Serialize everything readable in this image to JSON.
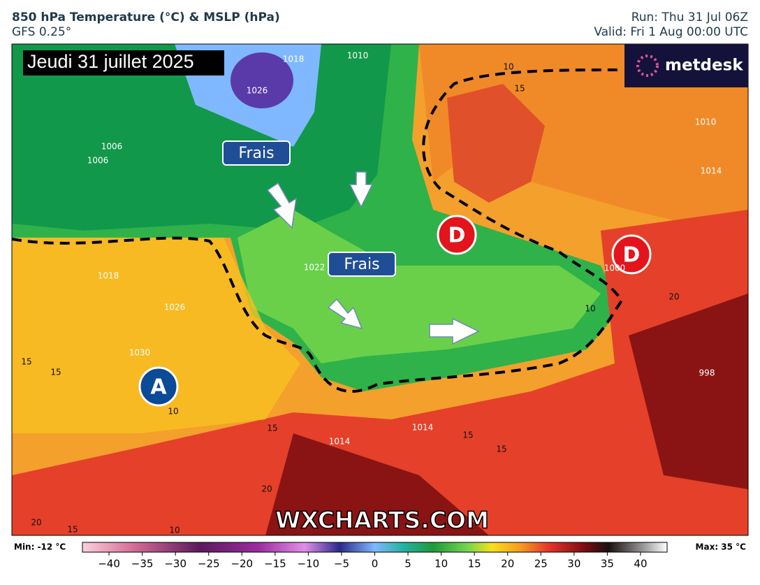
{
  "header": {
    "title": "850 hPa Temperature (°C) & MSLP (hPa)",
    "model": "GFS 0.25°",
    "run": "Run: Thu 31 Jul 06Z",
    "valid": "Valid: Fri 1 Aug 00:00 UTC"
  },
  "map": {
    "date_label": "Jeudi 31 juillet 2025",
    "logo": "metdesk",
    "annotations": [
      "Frais",
      "Frais"
    ],
    "pressure_centers": [
      "D",
      "D",
      "A"
    ],
    "pressure_labels": [
      1018,
      1026,
      1030,
      1022,
      1014,
      1014,
      1006,
      1010,
      1018,
      1026,
      1014,
      1006,
      1000,
      998,
      1010
    ],
    "temperature_labels": [
      15,
      15,
      10,
      15,
      20,
      15,
      15,
      20,
      10,
      10,
      15,
      20,
      15,
      10
    ],
    "watermark": "WXCHARTS.COM"
  },
  "colorbar": {
    "min_label": "Min: -12 °C",
    "max_label": "Max: 35 °C",
    "xlim": [
      -44,
      44
    ],
    "ticks": [
      {
        "value": -40,
        "label": "−40"
      },
      {
        "value": -35,
        "label": "−35"
      },
      {
        "value": -30,
        "label": "−30"
      },
      {
        "value": -25,
        "label": "−25"
      },
      {
        "value": -20,
        "label": "−20"
      },
      {
        "value": -15,
        "label": "−15"
      },
      {
        "value": -10,
        "label": "−10"
      },
      {
        "value": -5,
        "label": "−5"
      },
      0,
      5,
      10,
      15,
      20,
      25,
      30,
      35,
      40
    ]
  }
}
